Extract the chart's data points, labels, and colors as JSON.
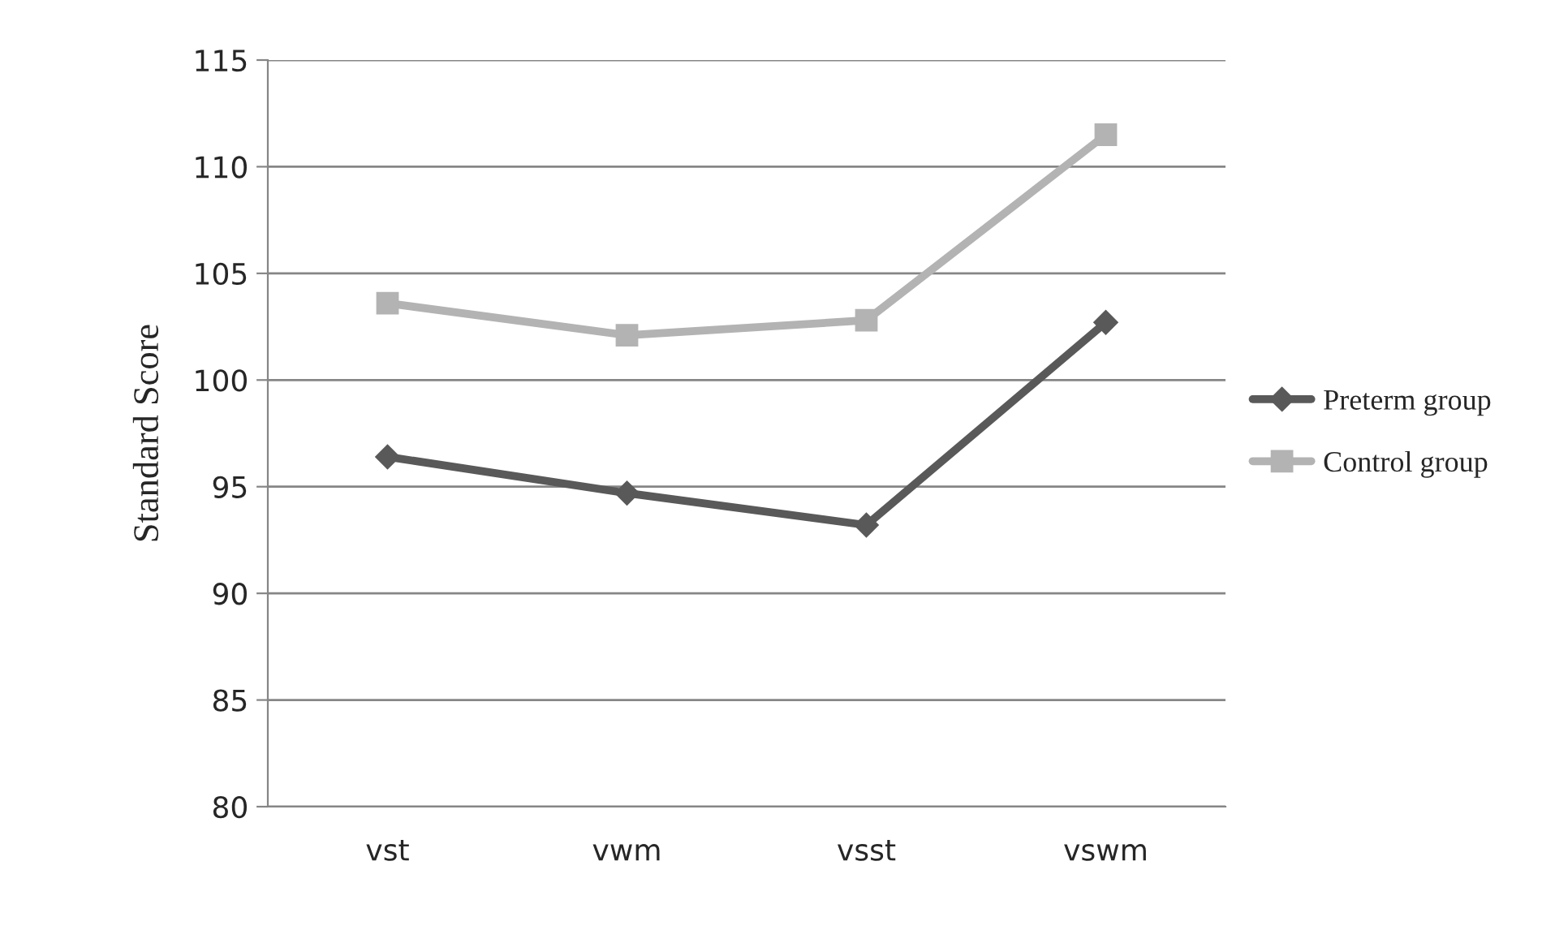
{
  "chart_data": {
    "type": "line",
    "ylabel": "Standard Score",
    "categories": [
      "vst",
      "vwm",
      "vsst",
      "vswm"
    ],
    "series": [
      {
        "name": "Preterm group",
        "color": "#595959",
        "marker": "diamond",
        "values": [
          96.4,
          94.7,
          93.2,
          102.7
        ]
      },
      {
        "name": "Control group",
        "color": "#b3b3b3",
        "marker": "square",
        "values": [
          103.6,
          102.1,
          102.8,
          111.5
        ]
      }
    ],
    "ylim": [
      80,
      115
    ],
    "yticks": [
      80,
      85,
      90,
      95,
      100,
      105,
      110,
      115
    ],
    "grid": "y",
    "legend": "right",
    "line_style": "solid"
  }
}
